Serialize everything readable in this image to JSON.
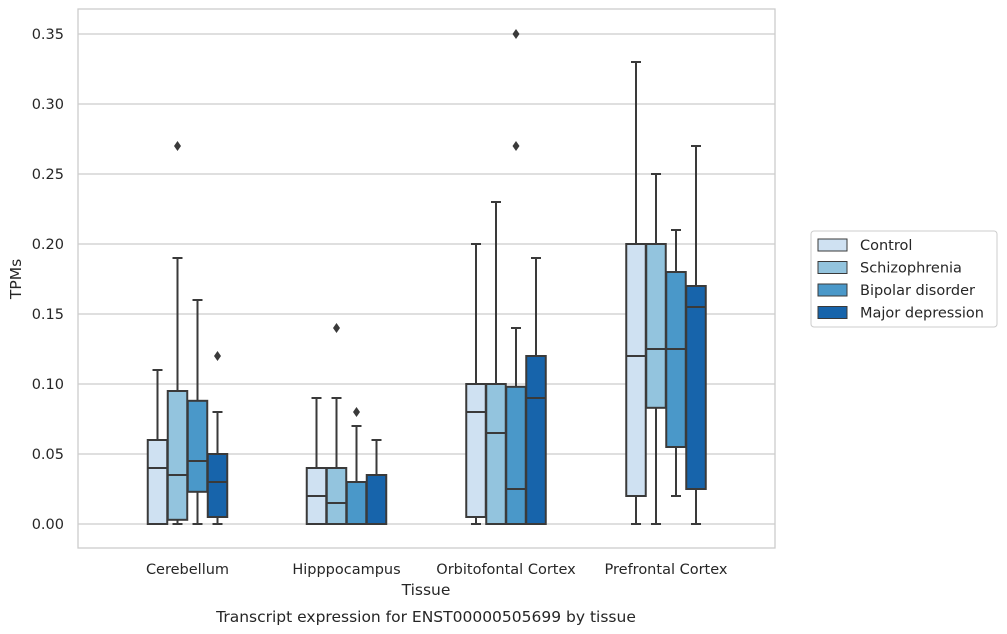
{
  "chart_data": {
    "type": "box",
    "xlabel": "Tissue",
    "ylabel": "TPMs",
    "caption": "Transcript expression for ENST00000505699 by tissue",
    "categories": [
      "Cerebellum",
      "Hipppocampus",
      "Orbitofontal Cortex",
      "Prefrontal Cortex"
    ],
    "ylim": [
      -0.017,
      0.368
    ],
    "yticks": [
      0.0,
      0.05,
      0.1,
      0.15,
      0.2,
      0.25,
      0.3,
      0.35
    ],
    "ytick_labels": [
      "0.00",
      "0.05",
      "0.10",
      "0.15",
      "0.20",
      "0.25",
      "0.30",
      "0.35"
    ],
    "grid": "horizontal",
    "legend_position": "right",
    "series": [
      {
        "name": "Control",
        "color": "#cfe1f2",
        "boxes": [
          {
            "whislo": 0.0,
            "q1": 0.0,
            "med": 0.04,
            "q3": 0.06,
            "whishi": 0.11,
            "fliers": []
          },
          {
            "whislo": 0.0,
            "q1": 0.0,
            "med": 0.02,
            "q3": 0.04,
            "whishi": 0.09,
            "fliers": []
          },
          {
            "whislo": 0.0,
            "q1": 0.005,
            "med": 0.08,
            "q3": 0.1,
            "whishi": 0.2,
            "fliers": []
          },
          {
            "whislo": 0.0,
            "q1": 0.02,
            "med": 0.12,
            "q3": 0.2,
            "whishi": 0.33,
            "fliers": []
          }
        ]
      },
      {
        "name": "Schizophrenia",
        "color": "#93c4de",
        "boxes": [
          {
            "whislo": 0.0,
            "q1": 0.003,
            "med": 0.035,
            "q3": 0.095,
            "whishi": 0.19,
            "fliers": [
              0.27
            ]
          },
          {
            "whislo": 0.0,
            "q1": 0.0,
            "med": 0.015,
            "q3": 0.04,
            "whishi": 0.09,
            "fliers": [
              0.14
            ]
          },
          {
            "whislo": 0.0,
            "q1": 0.0,
            "med": 0.065,
            "q3": 0.1,
            "whishi": 0.23,
            "fliers": []
          },
          {
            "whislo": 0.0,
            "q1": 0.083,
            "med": 0.125,
            "q3": 0.2,
            "whishi": 0.25,
            "fliers": []
          }
        ]
      },
      {
        "name": "Bipolar disorder",
        "color": "#4a98c9",
        "boxes": [
          {
            "whislo": 0.0,
            "q1": 0.023,
            "med": 0.045,
            "q3": 0.088,
            "whishi": 0.16,
            "fliers": []
          },
          {
            "whislo": 0.0,
            "q1": 0.0,
            "med": 0.03,
            "q3": 0.03,
            "whishi": 0.07,
            "fliers": [
              0.08
            ]
          },
          {
            "whislo": 0.0,
            "q1": 0.0,
            "med": 0.025,
            "q3": 0.098,
            "whishi": 0.14,
            "fliers": [
              0.27,
              0.35
            ]
          },
          {
            "whislo": 0.02,
            "q1": 0.055,
            "med": 0.125,
            "q3": 0.18,
            "whishi": 0.21,
            "fliers": []
          }
        ]
      },
      {
        "name": "Major depression",
        "color": "#1764ab",
        "boxes": [
          {
            "whislo": 0.0,
            "q1": 0.005,
            "med": 0.03,
            "q3": 0.05,
            "whishi": 0.08,
            "fliers": [
              0.12
            ]
          },
          {
            "whislo": 0.0,
            "q1": 0.0,
            "med": 0.035,
            "q3": 0.035,
            "whishi": 0.06,
            "fliers": []
          },
          {
            "whislo": 0.0,
            "q1": 0.0,
            "med": 0.09,
            "q3": 0.12,
            "whishi": 0.19,
            "fliers": []
          },
          {
            "whislo": 0.0,
            "q1": 0.025,
            "med": 0.155,
            "q3": 0.17,
            "whishi": 0.27,
            "fliers": []
          }
        ]
      }
    ]
  }
}
